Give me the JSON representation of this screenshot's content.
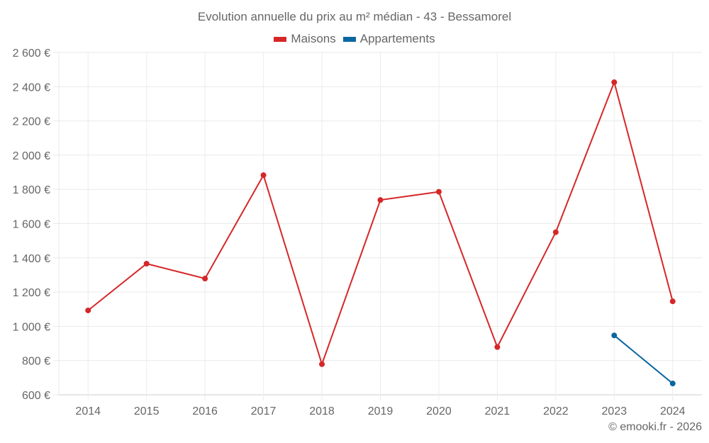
{
  "title": "Evolution annuelle du prix au m² médian - 43 - Bessamorel",
  "legend": [
    {
      "label": "Maisons",
      "color": "#d62728"
    },
    {
      "label": "Appartements",
      "color": "#0a66a0"
    }
  ],
  "credit": "© emooki.fr - 2026",
  "chart_data": {
    "type": "line",
    "title": "Evolution annuelle du prix au m² médian - 43 - Bessamorel",
    "xlabel": "",
    "ylabel": "",
    "categories": [
      "2014",
      "2015",
      "2016",
      "2017",
      "2018",
      "2019",
      "2020",
      "2021",
      "2022",
      "2023",
      "2024"
    ],
    "yticks": [
      "600 €",
      "800 €",
      "1 000 €",
      "1 200 €",
      "1 400 €",
      "1 600 €",
      "1 800 €",
      "2 000 €",
      "2 200 €",
      "2 400 €",
      "2 600 €"
    ],
    "ylim": [
      600,
      2600
    ],
    "grid": true,
    "legend_position": "top",
    "series": [
      {
        "name": "Maisons",
        "color": "#d62728",
        "values": [
          1093,
          1366,
          1279,
          1883,
          779,
          1738,
          1786,
          879,
          1550,
          2426,
          1146
        ]
      },
      {
        "name": "Appartements",
        "color": "#0a66a0",
        "values": [
          null,
          null,
          null,
          null,
          null,
          null,
          null,
          null,
          null,
          947,
          666
        ]
      }
    ]
  }
}
